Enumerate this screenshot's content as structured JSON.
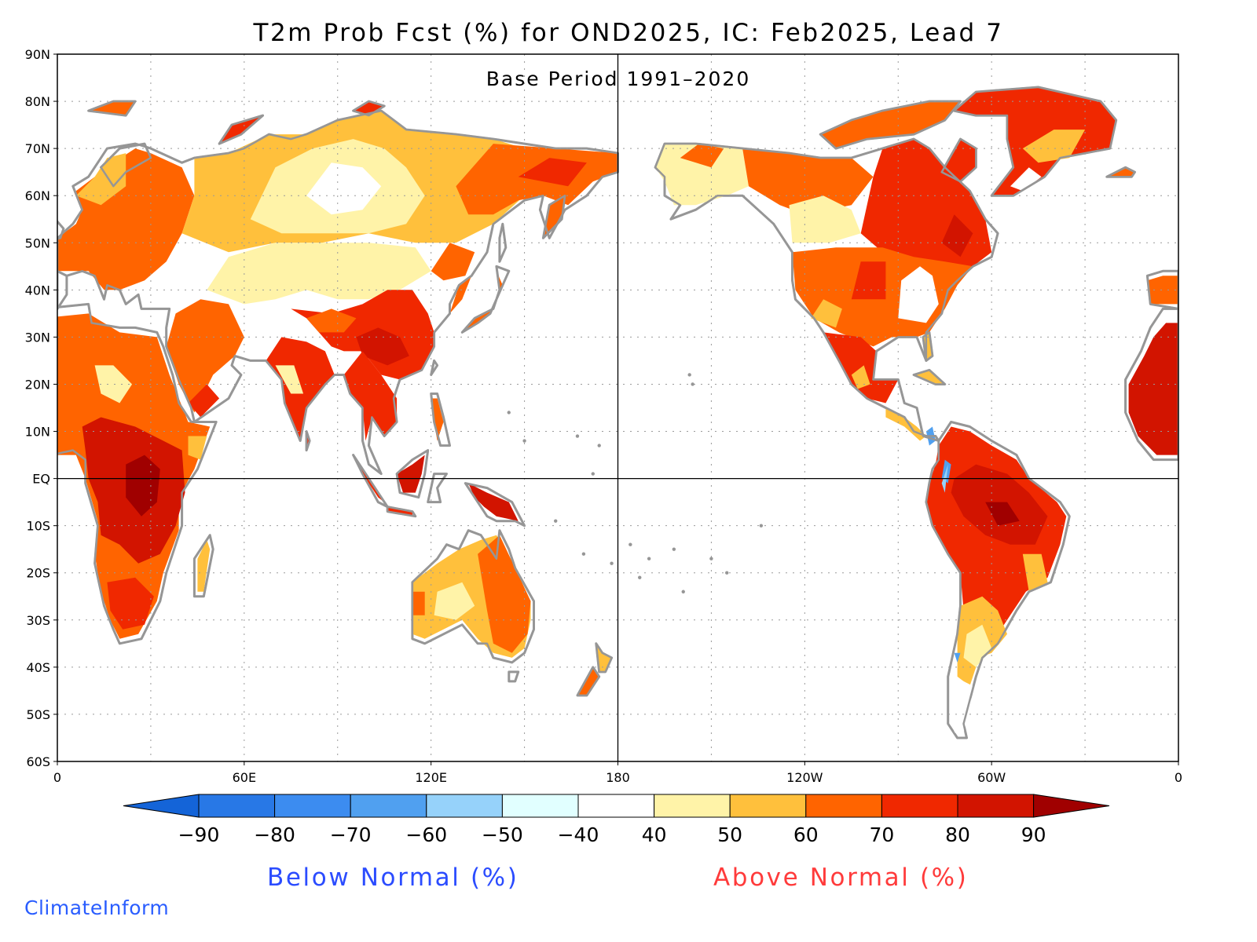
{
  "title": "T2m Prob Fcst (%) for OND2025, IC: Feb2025, Lead 7",
  "subtitle": "Base Period 1991–2020",
  "credit": "ClimateInform",
  "legend": {
    "below_label": "Below Normal (%)",
    "above_label": "Above Normal (%)",
    "below_color": "#2b4cff",
    "above_color": "#ff3b3b",
    "tick_labels": [
      "−90",
      "−80",
      "−70",
      "−60",
      "−50",
      "−40",
      "40",
      "50",
      "60",
      "70",
      "80",
      "90"
    ],
    "bins": [
      {
        "range": "<-90",
        "color": "#1464d8"
      },
      {
        "range": "-90..-80",
        "color": "#2878e6"
      },
      {
        "range": "-80..-70",
        "color": "#3c8cf0"
      },
      {
        "range": "-70..-60",
        "color": "#50a0f0"
      },
      {
        "range": "-60..-50",
        "color": "#96d2fa"
      },
      {
        "range": "-50..-40",
        "color": "#e1ffff"
      },
      {
        "range": "-40..40",
        "color": "#ffffff"
      },
      {
        "range": "40..50",
        "color": "#fff3a8"
      },
      {
        "range": "50..60",
        "color": "#ffc03c"
      },
      {
        "range": "60..70",
        "color": "#ff6400"
      },
      {
        "range": "70..80",
        "color": "#f02800"
      },
      {
        "range": "80..90",
        "color": "#d21400"
      },
      {
        "range": ">90",
        "color": "#a00000"
      }
    ]
  },
  "map": {
    "projection": "equirectangular, centered on 180",
    "lat_range": [
      -60,
      90
    ],
    "lon_start": 0,
    "lat_labels": [
      "90N",
      "80N",
      "70N",
      "60N",
      "50N",
      "40N",
      "30N",
      "20N",
      "10N",
      "EQ",
      "10S",
      "20S",
      "30S",
      "40S",
      "50S",
      "60S"
    ],
    "lon_labels": [
      "0",
      "60E",
      "120E",
      "180",
      "120W",
      "60W",
      "0"
    ],
    "grid": "dotted 10° latitude / 30° longitude",
    "reference_lines": [
      "Equator",
      "180° meridian"
    ],
    "coastline_color": "#969696",
    "regions": [
      {
        "name": "Africa",
        "probability_class": "80..90"
      },
      {
        "name": "South Asia / India",
        "probability_class": "70..80"
      },
      {
        "name": "China",
        "probability_class": "70..80"
      },
      {
        "name": "Siberia",
        "probability_class": "40..50"
      },
      {
        "name": "Northeast Russia",
        "probability_class": "60..70"
      },
      {
        "name": "Europe",
        "probability_class": "60..70"
      },
      {
        "name": "Maritime Continent",
        "probability_class": "80..90"
      },
      {
        "name": "Australia",
        "probability_class": "50..60"
      },
      {
        "name": "Alaska / Western Canada",
        "probability_class": "40..50"
      },
      {
        "name": "Eastern Canada",
        "probability_class": "70..80"
      },
      {
        "name": "Greenland",
        "probability_class": "70..80"
      },
      {
        "name": "United States",
        "probability_class": "60..70"
      },
      {
        "name": "Mexico",
        "probability_class": "70..80"
      },
      {
        "name": "Amazon",
        "probability_class": "80..90"
      },
      {
        "name": "Southern South America",
        "probability_class": "50..60"
      },
      {
        "name": "West Africa",
        "probability_class": "80..90"
      },
      {
        "name": "Panama / Colombia pocket",
        "probability_class": "-70..-60"
      }
    ]
  }
}
